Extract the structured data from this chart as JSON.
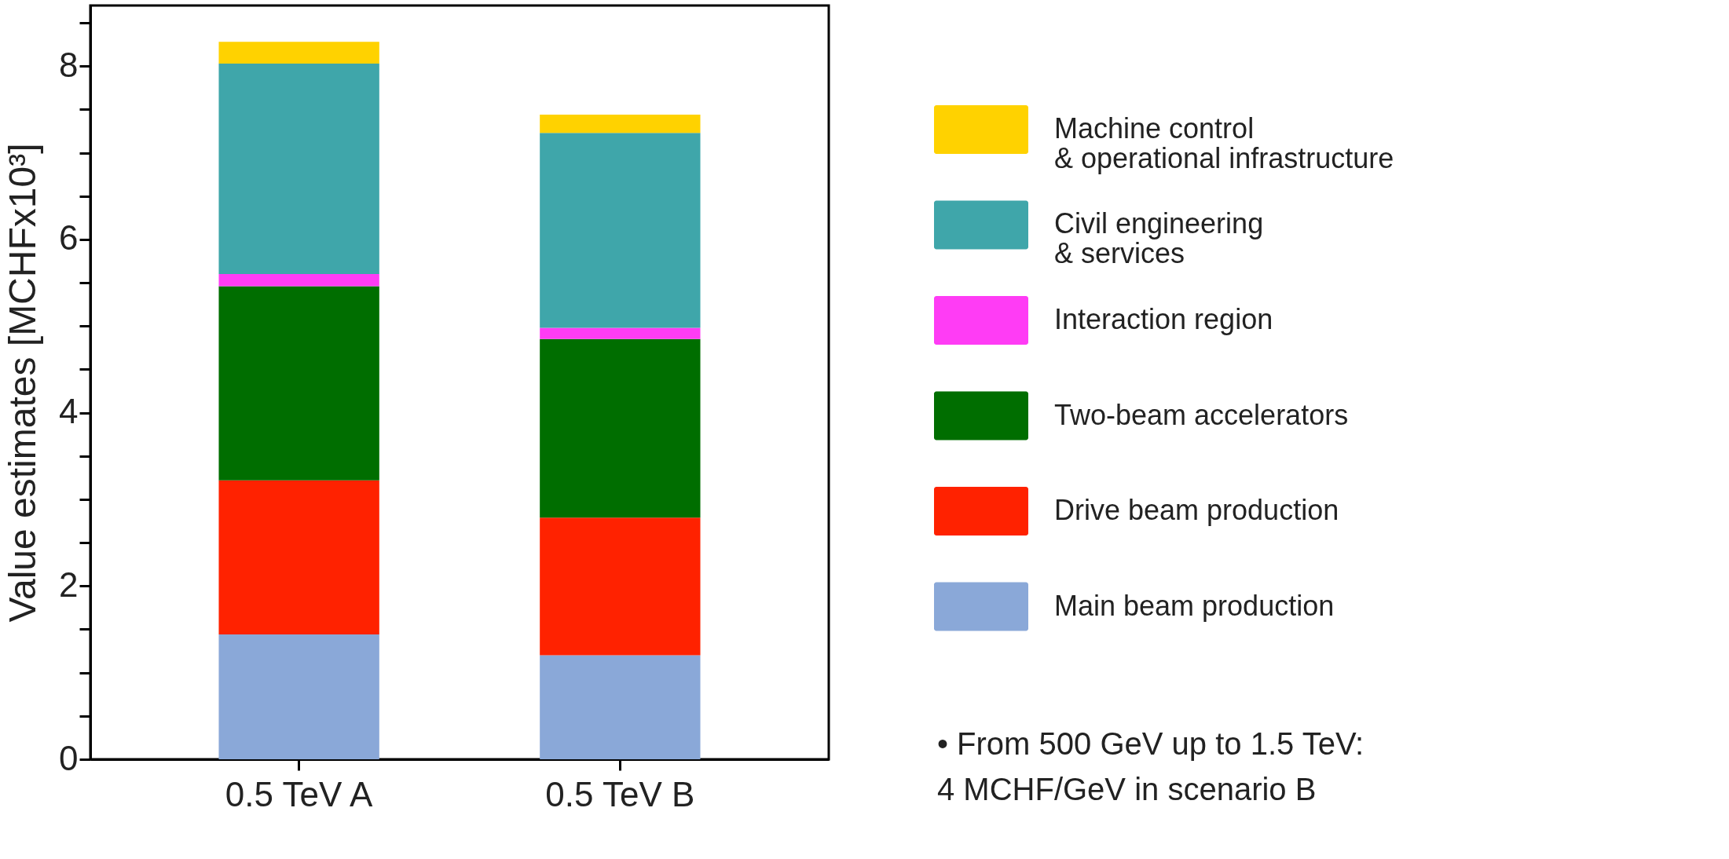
{
  "chart_data": {
    "type": "bar",
    "stacked": true,
    "ylabel": "Value estimates [MCHFx10³]",
    "categories": [
      "0.5 TeV A",
      "0.5 TeV B"
    ],
    "series": [
      {
        "name": "Main beam production",
        "color": "#8aa8d8",
        "values": [
          1.44,
          1.2
        ]
      },
      {
        "name": "Drive beam production",
        "color": "#ff2200",
        "values": [
          1.78,
          1.59
        ]
      },
      {
        "name": "Two-beam accelerators",
        "color": "#006e00",
        "values": [
          2.24,
          2.06
        ]
      },
      {
        "name": "Interaction region",
        "color": "#ff3cf5",
        "values": [
          0.14,
          0.13
        ]
      },
      {
        "name": "Civil engineering\n& services",
        "color": "#3fa6aa",
        "values": [
          2.43,
          2.25
        ]
      },
      {
        "name": "Machine control\n& operational infrastructure",
        "color": "#ffd200",
        "values": [
          0.25,
          0.21
        ]
      }
    ],
    "ylim": [
      0,
      8.7
    ],
    "yticks": [
      0,
      {
        "value": 0.5,
        "label": null
      },
      {
        "value": 1,
        "label": null
      },
      {
        "value": 1.5,
        "label": null
      },
      2,
      {
        "value": 2.5,
        "label": null
      },
      {
        "value": 3,
        "label": null
      },
      {
        "value": 3.5,
        "label": null
      },
      4,
      {
        "value": 4.5,
        "label": null
      },
      {
        "value": 5,
        "label": null
      },
      {
        "value": 5.5,
        "label": null
      },
      6,
      {
        "value": 6.5,
        "label": null
      },
      {
        "value": 7,
        "label": null
      },
      {
        "value": 7.5,
        "label": null
      },
      8,
      {
        "value": 8.5,
        "label": null
      }
    ],
    "grid": false,
    "legend": "right",
    "annotations": [
      "• From 500 GeV up to 1.5 TeV:\n  4 MCHF/GeV in scenario B"
    ]
  }
}
